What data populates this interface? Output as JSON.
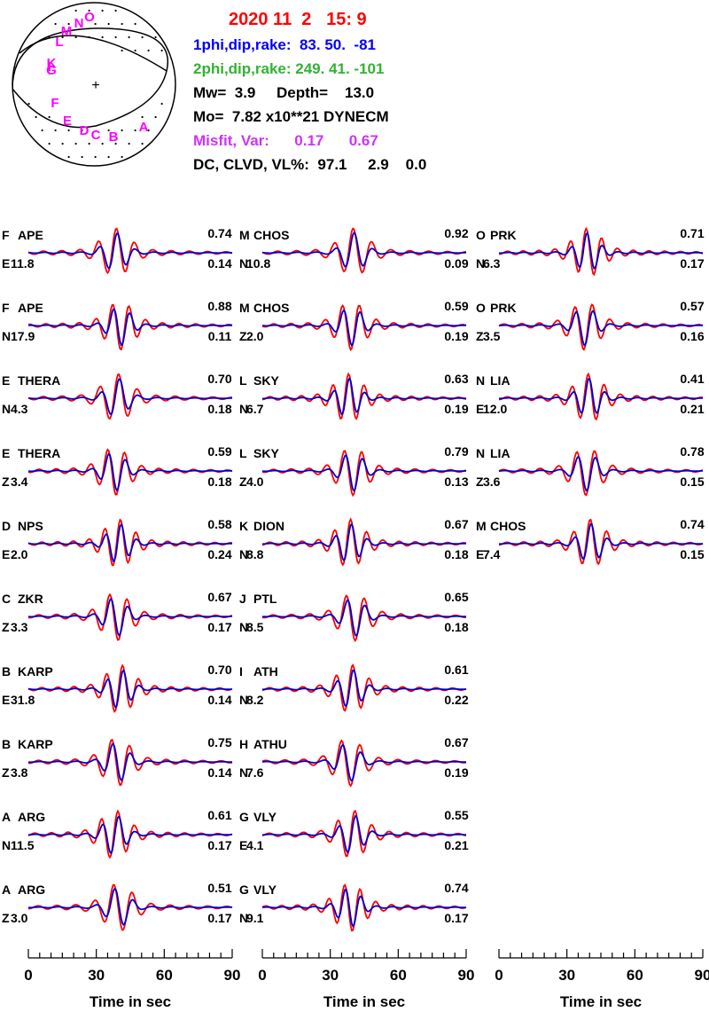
{
  "header": {
    "datetime": "2020 11  2   15: 9",
    "plane1": "1phi,dip,rake:  83. 50.  -81",
    "plane2": "2phi,dip,rake: 249. 41. -101",
    "mw_depth": "Mw=  3.9     Depth=    13.0",
    "moment": "Mo=  7.82 x10**21 DYNECM",
    "misfit": "Misfit, Var:      0.17      0.67",
    "dc": "DC, CLVD, VL%:  97.1     2.9    0.0"
  },
  "colors": {
    "datetime": "#ff0000",
    "plane1": "#0000ff",
    "plane2": "#33b233",
    "misfit": "#cc33ff",
    "observed": "#ff0000",
    "synthetic": "#0000cc",
    "station_marker": "#ff00ff"
  },
  "beachball": {
    "center_mark": "+",
    "station_markers": [
      "O",
      "N",
      "M",
      "L",
      "K",
      "I",
      "G",
      "F",
      "E",
      "D",
      "C",
      "B",
      "A"
    ]
  },
  "columns": [
    {
      "traces": [
        {
          "letter": "F",
          "station": "APE",
          "comp": "E",
          "amp": "11.8",
          "vr": "0.74",
          "shift": "0.14"
        },
        {
          "letter": "F",
          "station": "APE",
          "comp": "N",
          "amp": "17.9",
          "vr": "0.88",
          "shift": "0.11"
        },
        {
          "letter": "E",
          "station": "THERA",
          "comp": "N",
          "amp": "4.3",
          "vr": "0.70",
          "shift": "0.18"
        },
        {
          "letter": "E",
          "station": "THERA",
          "comp": "Z",
          "amp": "3.4",
          "vr": "0.59",
          "shift": "0.18"
        },
        {
          "letter": "D",
          "station": "NPS",
          "comp": "E",
          "amp": "2.0",
          "vr": "0.58",
          "shift": "0.24"
        },
        {
          "letter": "C",
          "station": "ZKR",
          "comp": "Z",
          "amp": "3.3",
          "vr": "0.67",
          "shift": "0.17"
        },
        {
          "letter": "B",
          "station": "KARP",
          "comp": "E",
          "amp": "31.8",
          "vr": "0.70",
          "shift": "0.14"
        },
        {
          "letter": "B",
          "station": "KARP",
          "comp": "Z",
          "amp": "3.8",
          "vr": "0.75",
          "shift": "0.14"
        },
        {
          "letter": "A",
          "station": "ARG",
          "comp": "N",
          "amp": "11.5",
          "vr": "0.61",
          "shift": "0.17"
        },
        {
          "letter": "A",
          "station": "ARG",
          "comp": "Z",
          "amp": "3.0",
          "vr": "0.51",
          "shift": "0.17"
        }
      ]
    },
    {
      "traces": [
        {
          "letter": "M",
          "station": "CHOS",
          "comp": "N",
          "amp": "10.8",
          "vr": "0.92",
          "shift": "0.09"
        },
        {
          "letter": "M",
          "station": "CHOS",
          "comp": "Z",
          "amp": "2.0",
          "vr": "0.59",
          "shift": "0.19"
        },
        {
          "letter": "L",
          "station": "SKY",
          "comp": "N",
          "amp": "6.7",
          "vr": "0.63",
          "shift": "0.19"
        },
        {
          "letter": "L",
          "station": "SKY",
          "comp": "Z",
          "amp": "4.0",
          "vr": "0.79",
          "shift": "0.13"
        },
        {
          "letter": "K",
          "station": "DION",
          "comp": "N",
          "amp": "8.8",
          "vr": "0.67",
          "shift": "0.18"
        },
        {
          "letter": "J",
          "station": "PTL",
          "comp": "N",
          "amp": "8.5",
          "vr": "0.65",
          "shift": "0.18"
        },
        {
          "letter": "I",
          "station": "ATH",
          "comp": "N",
          "amp": "8.2",
          "vr": "0.61",
          "shift": "0.22"
        },
        {
          "letter": "H",
          "station": "ATHU",
          "comp": "N",
          "amp": "7.6",
          "vr": "0.67",
          "shift": "0.19"
        },
        {
          "letter": "G",
          "station": "VLY",
          "comp": "E",
          "amp": "4.1",
          "vr": "0.55",
          "shift": "0.21"
        },
        {
          "letter": "G",
          "station": "VLY",
          "comp": "N",
          "amp": "9.1",
          "vr": "0.74",
          "shift": "0.17"
        }
      ]
    },
    {
      "traces": [
        {
          "letter": "O",
          "station": "PRK",
          "comp": "N",
          "amp": "6.3",
          "vr": "0.71",
          "shift": "0.17"
        },
        {
          "letter": "O",
          "station": "PRK",
          "comp": "Z",
          "amp": "3.5",
          "vr": "0.57",
          "shift": "0.16"
        },
        {
          "letter": "N",
          "station": "LIA",
          "comp": "E",
          "amp": "12.0",
          "vr": "0.41",
          "shift": "0.21"
        },
        {
          "letter": "N",
          "station": "LIA",
          "comp": "Z",
          "amp": "3.6",
          "vr": "0.78",
          "shift": "0.15"
        },
        {
          "letter": "M",
          "station": "CHOS",
          "comp": "E",
          "amp": "7.4",
          "vr": "0.74",
          "shift": "0.15"
        }
      ]
    }
  ],
  "time_axis": {
    "ticks": [
      0,
      30,
      60,
      90
    ],
    "range": [
      0,
      90
    ],
    "label": "Time  in sec"
  }
}
